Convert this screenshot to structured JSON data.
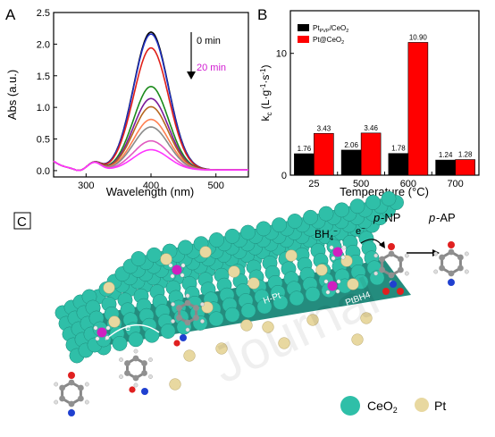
{
  "chart_data": [
    {
      "panel": "A",
      "type": "line",
      "xlabel": "Wavelength (nm)",
      "ylabel": "Abs (a.u.)",
      "xlim": [
        250,
        550
      ],
      "ylim": [
        -0.1,
        2.5
      ],
      "xticks": [
        300,
        400,
        500
      ],
      "yticks": [
        0.0,
        0.5,
        1.0,
        1.5,
        2.0,
        2.5
      ],
      "annotations": [
        {
          "text": "0 min",
          "color": "#000000"
        },
        {
          "text": "20 min",
          "color": "#d11ad1"
        }
      ],
      "series": [
        {
          "peak": 2.18,
          "color": "#000000"
        },
        {
          "peak": 2.15,
          "color": "#1f2fbf"
        },
        {
          "peak": 1.93,
          "color": "#e0201a"
        },
        {
          "peak": 1.32,
          "color": "#1a8a1a"
        },
        {
          "peak": 1.13,
          "color": "#7a1a9a"
        },
        {
          "peak": 1.0,
          "color": "#b5651d"
        },
        {
          "peak": 0.8,
          "color": "#ff7f50"
        },
        {
          "peak": 0.68,
          "color": "#8a8a8a"
        },
        {
          "peak": 0.46,
          "color": "#e05ac0"
        },
        {
          "peak": 0.32,
          "color": "#ff33ff"
        }
      ]
    },
    {
      "panel": "B",
      "type": "bar",
      "xlabel": "Temperature (°C)",
      "ylabel": "kc (L·g⁻¹·s⁻¹)",
      "ylim": [
        0,
        13.5
      ],
      "yticks": [
        0,
        10
      ],
      "categories": [
        "25",
        "500",
        "600",
        "700"
      ],
      "series": [
        {
          "name": "PtPVP/CeO2",
          "values": [
            1.76,
            2.06,
            1.78,
            1.24
          ],
          "labels": [
            "1.76",
            "2.06",
            "1.78",
            "1.24"
          ],
          "color": "#000000"
        },
        {
          "name": "Pt@CeO2",
          "values": [
            3.43,
            3.46,
            10.9,
            1.28
          ],
          "labels": [
            "3.43",
            "3.46",
            "10.90",
            "1.28"
          ],
          "color": "#ff0000"
        }
      ]
    }
  ],
  "panels": {
    "a": "A",
    "b": "B",
    "c": "C"
  },
  "schematic": {
    "bh4": "BH4−",
    "electron": "e−",
    "e_small": "e",
    "pnp": "p-NP",
    "pap": "p-AP",
    "h_pt": "H-Pt",
    "pt_bh4": "PtBH4",
    "legend_ceo2": "CeO2",
    "legend_pt": "Pt",
    "colors": {
      "ceo2": "#2fbfa8",
      "pt": "#e8d8a0",
      "boron": "#d020c0",
      "oxygen": "#e02020",
      "nitrogen": "#2040d0",
      "carbon": "#909090"
    }
  }
}
